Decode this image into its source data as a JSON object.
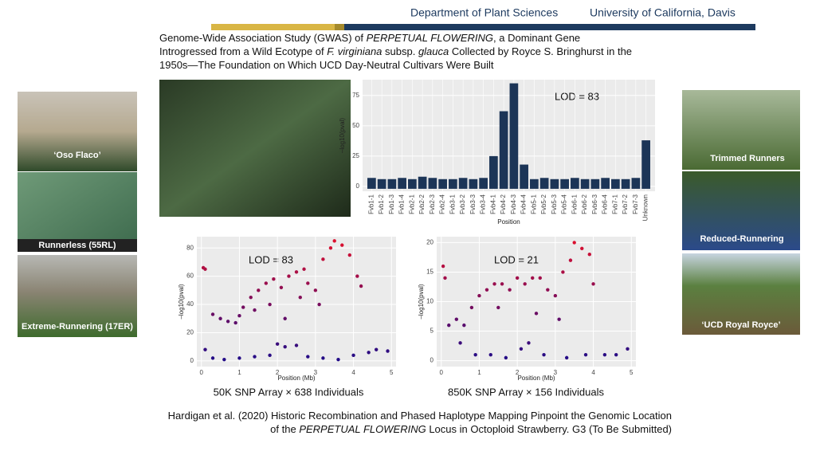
{
  "header": {
    "department": "Department of Plant Sciences",
    "university": "University of California, Davis"
  },
  "title": {
    "line1": [
      "Genome-Wide Association Study (GWAS) of ",
      "PERPETUAL FLOWERING",
      ", a Dominant Gene"
    ],
    "line2": [
      "Introgressed from a Wild Ecotype of ",
      "F. virginiana",
      " subsp. ",
      "glauca",
      " Collected by Royce S. Bringhurst in the"
    ],
    "line3": [
      "1950s—The Foundation on Which UCD Day-Neutral Cultivars Were Built"
    ]
  },
  "photo_captions": {
    "left": [
      "‘Oso Flaco’",
      "Runnerless (55RL)",
      "Extreme-Runnering (17ER)"
    ],
    "right": [
      "Trimmed Runners",
      "Reduced-Runnering",
      "‘UCD Royal Royce’"
    ]
  },
  "chart_data": [
    {
      "type": "strip",
      "xlabel": "Position",
      "ylabel": "–log10(pval)",
      "annotation": "LOD = 83",
      "categories": [
        "Fvb1-1",
        "Fvb1-2",
        "Fvb1-3",
        "Fvb1-4",
        "Fvb2-1",
        "Fvb2-2",
        "Fvb2-3",
        "Fvb2-4",
        "Fvb3-1",
        "Fvb3-2",
        "Fvb3-3",
        "Fvb3-4",
        "Fvb4-1",
        "Fvb4-2",
        "Fvb4-3",
        "Fvb4-4",
        "Fvb5-1",
        "Fvb5-2",
        "Fvb5-3",
        "Fvb5-4",
        "Fvb6-1",
        "Fvb6-2",
        "Fvb6-3",
        "Fvb6-4",
        "Fvb7-1",
        "Fvb7-2",
        "Fvb7-3",
        "Unknown"
      ],
      "values": [
        7,
        6,
        6,
        7,
        6,
        8,
        7,
        6,
        6,
        7,
        6,
        7,
        25,
        62,
        85,
        18,
        6,
        7,
        6,
        6,
        7,
        6,
        6,
        7,
        6,
        6,
        7,
        38
      ],
      "color": "#1c3557",
      "ylim": [
        -4,
        88
      ],
      "yticks": [
        0,
        25,
        50,
        75
      ]
    },
    {
      "type": "scatter",
      "xlabel": "Position (Mb)",
      "ylabel": "–log10(pval)",
      "annotation": "LOD = 83",
      "subtitle": "50K SNP Array × 638 Individuals",
      "x": [
        0.05,
        0.1,
        0.3,
        0.5,
        0.7,
        0.9,
        1.0,
        1.1,
        1.3,
        1.5,
        1.7,
        1.9,
        2.1,
        2.3,
        2.5,
        2.7,
        2.8,
        3.0,
        3.2,
        3.4,
        3.5,
        3.7,
        3.9,
        4.1,
        4.2,
        1.4,
        1.8,
        2.6,
        3.1,
        2.2,
        0.1,
        0.3,
        0.6,
        1.0,
        1.4,
        1.8,
        2.0,
        2.2,
        2.5,
        2.8,
        3.2,
        3.6,
        4.0,
        4.4,
        4.6,
        4.9
      ],
      "values": [
        66,
        65,
        33,
        30,
        28,
        27,
        32,
        38,
        45,
        50,
        55,
        58,
        52,
        60,
        63,
        65,
        55,
        50,
        72,
        80,
        85,
        82,
        75,
        60,
        53,
        36,
        40,
        45,
        40,
        30,
        8,
        2,
        1,
        2,
        3,
        4,
        12,
        10,
        11,
        3,
        2,
        1,
        4,
        6,
        8,
        7
      ],
      "colors": [
        "#170b8c",
        "#e3102b"
      ],
      "xlim": [
        -0.12,
        5.12
      ],
      "xticks": [
        0,
        1,
        2,
        3,
        4,
        5
      ],
      "ylim": [
        -4,
        88
      ],
      "yticks": [
        0,
        20,
        40,
        60,
        80
      ]
    },
    {
      "type": "scatter",
      "xlabel": "Position (Mb)",
      "ylabel": "–log10(pval)",
      "annotation": "LOD = 21",
      "subtitle": "850K SNP Array × 156 Individuals",
      "x": [
        0.05,
        0.1,
        0.2,
        0.4,
        0.6,
        0.8,
        1.0,
        1.2,
        1.4,
        1.6,
        1.8,
        2.0,
        2.2,
        2.4,
        2.6,
        2.8,
        3.0,
        3.2,
        3.4,
        3.5,
        3.7,
        3.9,
        4.0,
        1.5,
        2.5,
        3.1,
        0.5,
        0.9,
        1.3,
        1.7,
        2.1,
        2.3,
        2.7,
        3.3,
        3.8,
        4.3,
        4.6,
        4.9
      ],
      "values": [
        16,
        14,
        6,
        7,
        6,
        9,
        11,
        12,
        13,
        13,
        12,
        14,
        13,
        14,
        14,
        12,
        11,
        15,
        17,
        20,
        19,
        18,
        13,
        9,
        8,
        7,
        3,
        1,
        1,
        0.5,
        2,
        3,
        1,
        0.5,
        1,
        1,
        1,
        2
      ],
      "colors": [
        "#170b8c",
        "#e3102b"
      ],
      "xlim": [
        -0.12,
        5.12
      ],
      "xticks": [
        0,
        1,
        2,
        3,
        4,
        5
      ],
      "ylim": [
        -1,
        21
      ],
      "yticks": [
        0,
        5,
        10,
        15,
        20
      ]
    }
  ],
  "citation": {
    "line1": [
      "Hardigan et al. (2020) Historic Recombination and Phased Haplotype Mapping Pinpoint the Genomic Location"
    ],
    "line2": [
      "of the ",
      "PERPETUAL FLOWERING",
      " Locus in Octoploid Strawberry. G3 (To Be Submitted)"
    ]
  }
}
